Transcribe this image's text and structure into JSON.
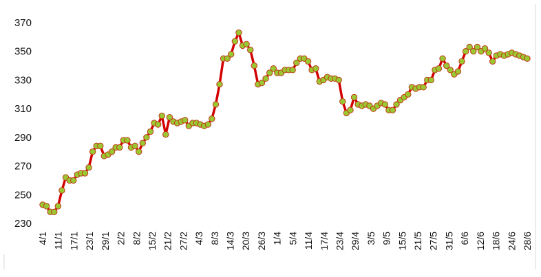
{
  "chart_data": {
    "type": "line",
    "title": "",
    "xlabel": "",
    "ylabel": "",
    "ylim": [
      230,
      370
    ],
    "y_ticks": [
      230,
      250,
      270,
      290,
      310,
      330,
      350,
      370
    ],
    "grid": "none",
    "legend": "none",
    "colors": {
      "line": "#d20000",
      "marker_fill": "#9bc832",
      "marker_edge": "#c03818"
    },
    "x_tick_labels": [
      "4/1",
      "11/1",
      "17/1",
      "23/1",
      "29/1",
      "2/2",
      "8/2",
      "15/2",
      "21/2",
      "27/2",
      "4/3",
      "8/3",
      "14/3",
      "20/3",
      "26/3",
      "1/4",
      "5/4",
      "11/4",
      "17/4",
      "23/4",
      "29/4",
      "3/5",
      "9/5",
      "15/5",
      "21/5",
      "27/5",
      "31/5",
      "6/6",
      "12/6",
      "18/6",
      "24/6",
      "28/6"
    ],
    "series": [
      {
        "values": [
          243,
          242,
          238,
          238,
          242,
          253,
          262,
          260,
          260,
          264,
          265,
          265,
          269,
          280,
          284,
          284,
          277,
          278,
          280,
          283,
          283,
          288,
          288,
          283,
          284,
          280,
          286,
          290,
          294,
          300,
          299,
          305,
          292,
          304,
          301,
          300,
          301,
          302,
          298,
          300,
          300,
          299,
          298,
          299,
          303,
          313,
          327,
          345,
          345,
          348,
          357,
          363,
          354,
          355,
          351,
          340,
          327,
          328,
          331,
          335,
          338,
          335,
          335,
          337,
          337,
          337,
          342,
          345,
          345,
          343,
          337,
          338,
          329,
          330,
          332,
          331,
          331,
          330,
          315,
          307,
          309,
          318,
          313,
          312,
          313,
          312,
          310,
          312,
          314,
          313,
          309,
          309,
          313,
          316,
          318,
          320,
          325,
          324,
          325,
          325,
          330,
          330,
          337,
          338,
          345,
          340,
          337,
          334,
          336,
          343,
          350,
          353,
          350,
          353,
          350,
          352,
          349,
          343,
          347,
          348,
          347,
          348,
          349,
          348,
          347,
          346,
          345
        ]
      }
    ]
  }
}
